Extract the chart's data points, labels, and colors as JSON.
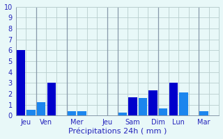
{
  "bars": [
    {
      "x": 1,
      "height": 6.0,
      "color": "#0000cc"
    },
    {
      "x": 2,
      "height": 0.5,
      "color": "#1c86ee"
    },
    {
      "x": 3,
      "height": 1.2,
      "color": "#1c86ee"
    },
    {
      "x": 4,
      "height": 3.0,
      "color": "#0000cc"
    },
    {
      "x": 6,
      "height": 0.4,
      "color": "#1c86ee"
    },
    {
      "x": 7,
      "height": 0.4,
      "color": "#1c86ee"
    },
    {
      "x": 11,
      "height": 0.3,
      "color": "#1c86ee"
    },
    {
      "x": 12,
      "height": 1.7,
      "color": "#0000cc"
    },
    {
      "x": 13,
      "height": 1.6,
      "color": "#1c86ee"
    },
    {
      "x": 14,
      "height": 2.3,
      "color": "#0000cc"
    },
    {
      "x": 15,
      "height": 0.65,
      "color": "#1c86ee"
    },
    {
      "x": 16,
      "height": 3.0,
      "color": "#0000cc"
    },
    {
      "x": 17,
      "height": 2.1,
      "color": "#1c86ee"
    },
    {
      "x": 19,
      "height": 0.4,
      "color": "#1c86ee"
    }
  ],
  "bar_width": 0.85,
  "vlines": [
    2.5,
    5.5,
    9.5,
    10.5,
    14.5,
    18.5
  ],
  "xtick_positions": [
    1.5,
    3.5,
    6.5,
    9.5,
    12.0,
    14.5,
    16.5,
    19.0
  ],
  "xlabels": [
    "Jeu",
    "Ven",
    "Mer",
    "Jeu",
    "Sam",
    "Dim",
    "Lun",
    "Mar"
  ],
  "xlim": [
    0.5,
    20.5
  ],
  "ylim": [
    0,
    10
  ],
  "yticks": [
    0,
    1,
    2,
    3,
    4,
    5,
    6,
    7,
    8,
    9,
    10
  ],
  "xlabel": "Précipitations 24h ( mm )",
  "background_color": "#e8f8f8",
  "grid_color": "#b8cece",
  "vline_color": "#8899aa",
  "tick_color": "#2222bb",
  "label_color": "#2222bb",
  "xlabel_fontsize": 8,
  "ytick_fontsize": 7,
  "xtick_fontsize": 7
}
